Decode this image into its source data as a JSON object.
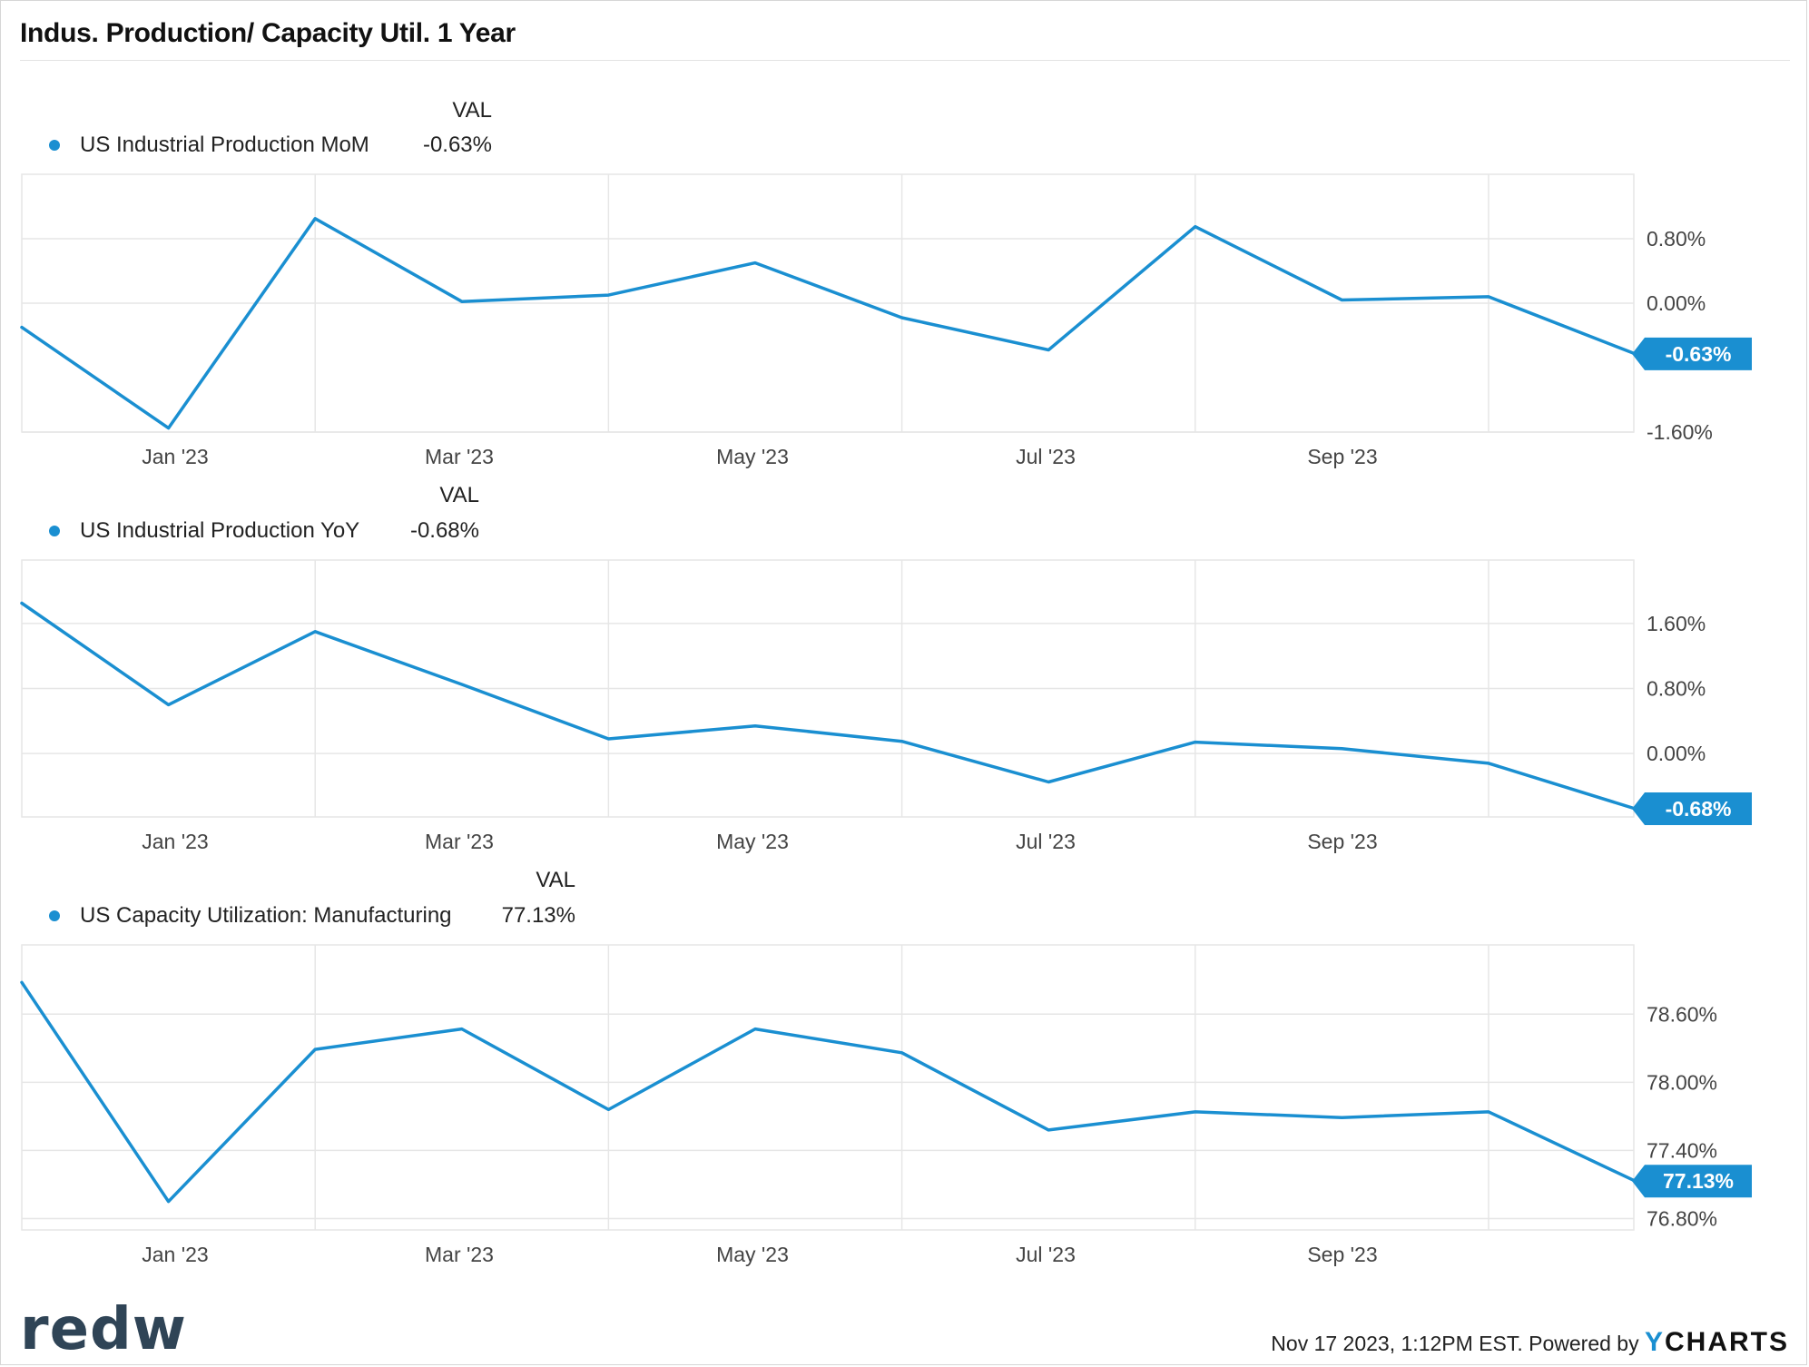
{
  "header": {
    "title": "Indus. Production/ Capacity Util. 1 Year"
  },
  "colors": {
    "line": "#1a8fd1",
    "grid": "#e6e6e6",
    "tag": "#1a8fd1"
  },
  "footer": {
    "timestamp_text": "Nov 17 2023, 1:12PM EST. Powered by",
    "brand_y": "Y",
    "brand_rest": "CHARTS",
    "logo_text": "redw"
  },
  "chart_data": [
    {
      "type": "line",
      "legend_header": "VAL",
      "series": [
        {
          "name": "US Industrial Production MoM",
          "value_label": "-0.63%",
          "x": [
            "2022-11",
            "2022-12",
            "2023-01",
            "2023-02",
            "2023-03",
            "2023-04",
            "2023-05",
            "2023-06",
            "2023-07",
            "2023-08",
            "2023-09",
            "2023-10"
          ],
          "values": [
            -0.3,
            -1.55,
            1.05,
            0.02,
            0.1,
            0.5,
            -0.18,
            -0.58,
            0.95,
            0.04,
            0.08,
            -0.63
          ]
        }
      ],
      "y_ticks": [
        "0.80%",
        "0.00%",
        "-1.60%"
      ],
      "ylim": [
        -1.6,
        1.6
      ],
      "x_ticks": [
        "Jan '23",
        "Mar '23",
        "May '23",
        "Jul '23",
        "Sep '23"
      ],
      "last_value_tag": "-0.63%"
    },
    {
      "type": "line",
      "legend_header": "VAL",
      "series": [
        {
          "name": "US Industrial Production YoY",
          "value_label": "-0.68%",
          "x": [
            "2022-11",
            "2022-12",
            "2023-01",
            "2023-02",
            "2023-03",
            "2023-04",
            "2023-05",
            "2023-06",
            "2023-07",
            "2023-08",
            "2023-09",
            "2023-10"
          ],
          "values": [
            1.85,
            0.6,
            1.5,
            0.85,
            0.18,
            0.34,
            0.15,
            -0.35,
            0.14,
            0.06,
            -0.12,
            -0.68
          ]
        }
      ],
      "y_ticks": [
        "1.60%",
        "0.80%",
        "0.00%"
      ],
      "ylim": [
        -0.78,
        2.38
      ],
      "x_ticks": [
        "Jan '23",
        "Mar '23",
        "May '23",
        "Jul '23",
        "Sep '23"
      ],
      "last_value_tag": "-0.68%"
    },
    {
      "type": "line",
      "legend_header": "VAL",
      "series": [
        {
          "name": "US Capacity Utilization: Manufacturing",
          "value_label": "77.13%",
          "x": [
            "2022-11",
            "2022-12",
            "2023-01",
            "2023-02",
            "2023-03",
            "2023-04",
            "2023-05",
            "2023-06",
            "2023-07",
            "2023-08",
            "2023-09",
            "2023-10"
          ],
          "values": [
            78.88,
            76.95,
            78.29,
            78.47,
            77.76,
            78.47,
            78.26,
            77.58,
            77.74,
            77.69,
            77.74,
            77.13
          ]
        }
      ],
      "y_ticks": [
        "78.60%",
        "78.00%",
        "77.40%",
        "76.80%"
      ],
      "ylim": [
        76.7,
        79.21
      ],
      "x_ticks": [
        "Jan '23",
        "Mar '23",
        "May '23",
        "Jul '23",
        "Sep '23"
      ],
      "last_value_tag": "77.13%"
    }
  ]
}
